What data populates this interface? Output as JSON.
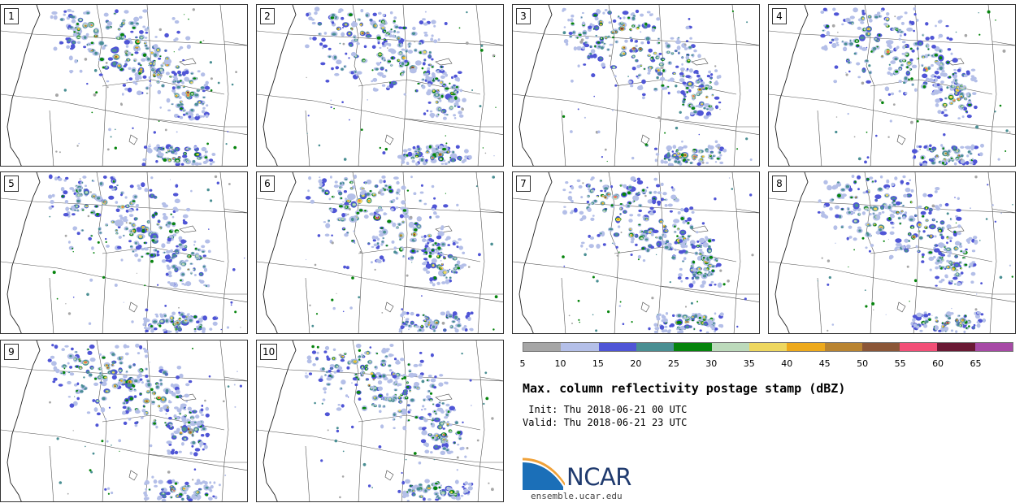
{
  "panels": [
    {
      "label": "1",
      "seed": 11
    },
    {
      "label": "2",
      "seed": 23
    },
    {
      "label": "3",
      "seed": 37
    },
    {
      "label": "4",
      "seed": 41
    },
    {
      "label": "5",
      "seed": 53
    },
    {
      "label": "6",
      "seed": 67
    },
    {
      "label": "7",
      "seed": 71
    },
    {
      "label": "8",
      "seed": 83
    },
    {
      "label": "9",
      "seed": 97
    },
    {
      "label": "10",
      "seed": 101
    }
  ],
  "colorbar": {
    "ticks": [
      "5",
      "10",
      "15",
      "20",
      "25",
      "30",
      "35",
      "40",
      "45",
      "50",
      "55",
      "60",
      "65"
    ],
    "colors": [
      "#a6a6a6",
      "#b4bfe8",
      "#4f55d6",
      "#4a8f93",
      "#06840d",
      "#bcdabb",
      "#eed75f",
      "#eda91c",
      "#b98431",
      "#8b5637",
      "#f24f77",
      "#6a1934",
      "#a74aa6"
    ]
  },
  "title": "Max. column reflectivity postage stamp (dBZ)",
  "init": " Init: Thu 2018-06-21 00 UTC",
  "valid": "Valid: Thu 2018-06-21 23 UTC",
  "logo": {
    "name": "NCAR",
    "url": "ensemble.ucar.edu"
  }
}
